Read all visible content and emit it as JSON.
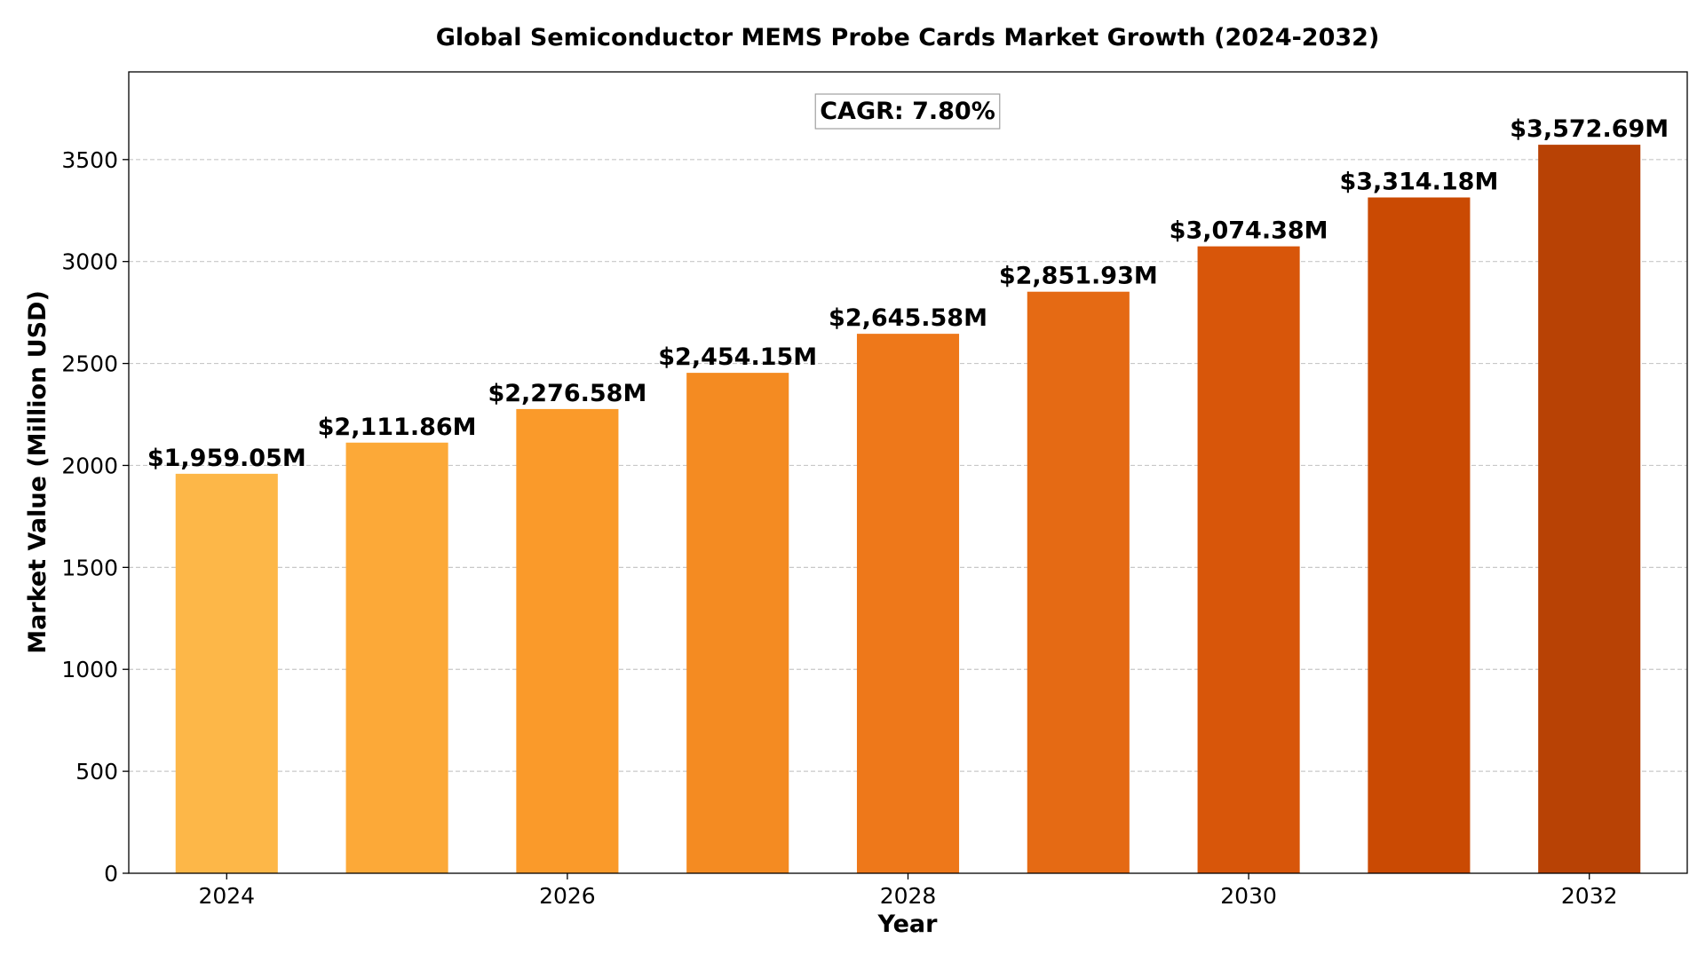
{
  "chart_data": {
    "type": "bar",
    "title": "Global Semiconductor MEMS Probe Cards Market Growth (2024-2032)",
    "xlabel": "Year",
    "ylabel": "Market Value (Million USD)",
    "categories": [
      2024,
      2025,
      2026,
      2027,
      2028,
      2029,
      2030,
      2031,
      2032
    ],
    "values": [
      1959.05,
      2111.86,
      2276.58,
      2454.15,
      2645.58,
      2851.93,
      3074.38,
      3314.18,
      3572.69
    ],
    "data_labels": [
      "$1,959.05M",
      "$2,111.86M",
      "$2,276.58M",
      "$2,454.15M",
      "$2,645.58M",
      "$2,851.93M",
      "$3,074.38M",
      "$3,314.18M",
      "$3,572.69M"
    ],
    "annotation": "CAGR: 7.80%",
    "ylim": [
      0,
      3930
    ],
    "yticks": [
      0,
      500,
      1000,
      1500,
      2000,
      2500,
      3000,
      3500
    ],
    "xticks": [
      2024,
      2026,
      2028,
      2030,
      2032
    ],
    "grid": "y-dashed",
    "bar_colors": [
      "#fdb748",
      "#fca938",
      "#fa9a2a",
      "#f48b22",
      "#ee781a",
      "#e56a14",
      "#d8560a",
      "#ca4a03",
      "#b84205"
    ],
    "axis_color": "#000000",
    "grid_color": "#c8c8c8"
  }
}
